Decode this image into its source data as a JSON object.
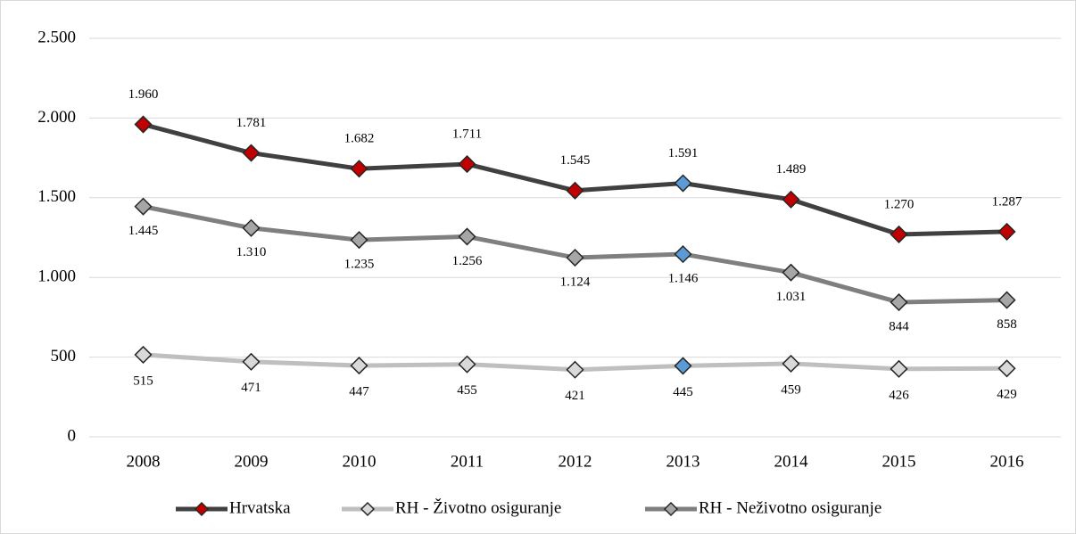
{
  "chart_data": {
    "type": "line",
    "categories": [
      "2008",
      "2009",
      "2010",
      "2011",
      "2012",
      "2013",
      "2014",
      "2015",
      "2016"
    ],
    "series": [
      {
        "name": "Hrvatska",
        "color": "#404040",
        "marker_colors": [
          "#c00000",
          "#c00000",
          "#c00000",
          "#c00000",
          "#c00000",
          "#5b9bd5",
          "#c00000",
          "#c00000",
          "#c00000"
        ],
        "values": [
          1960,
          1781,
          1682,
          1711,
          1545,
          1591,
          1489,
          1270,
          1287
        ],
        "value_labels": [
          "1.960",
          "1.781",
          "1.682",
          "1.711",
          "1.545",
          "1.591",
          "1.489",
          "1.270",
          "1.287"
        ]
      },
      {
        "name": "RH - Životno osiguranje",
        "color": "#bfbfbf",
        "marker_colors": [
          "#d9d9d9",
          "#d9d9d9",
          "#d9d9d9",
          "#d9d9d9",
          "#d9d9d9",
          "#5b9bd5",
          "#d9d9d9",
          "#d9d9d9",
          "#d9d9d9"
        ],
        "values": [
          515,
          471,
          447,
          455,
          421,
          445,
          459,
          426,
          429
        ]
      },
      {
        "name": "RH - Neživotno osiguranje",
        "color": "#7f7f7f",
        "marker_colors": [
          "#a6a6a6",
          "#a6a6a6",
          "#a6a6a6",
          "#a6a6a6",
          "#a6a6a6",
          "#5b9bd5",
          "#a6a6a6",
          "#a6a6a6",
          "#a6a6a6"
        ],
        "values": [
          1445,
          1310,
          1235,
          1256,
          1124,
          1146,
          1031,
          844,
          858
        ],
        "value_labels": [
          "1.445",
          "1.310",
          "1.235",
          "1.256",
          "1.124",
          "1.146",
          "1.031",
          "844",
          "858"
        ]
      }
    ],
    "ylim": [
      0,
      2500
    ],
    "yticks": [
      0,
      500,
      {
        "value": 1000,
        "label": "1.000"
      },
      {
        "value": 1500,
        "label": "1.500"
      },
      {
        "value": 2000,
        "label": "2.000"
      },
      {
        "value": 2500,
        "label": "2.500"
      }
    ],
    "grid": true,
    "legend": "bottom"
  }
}
